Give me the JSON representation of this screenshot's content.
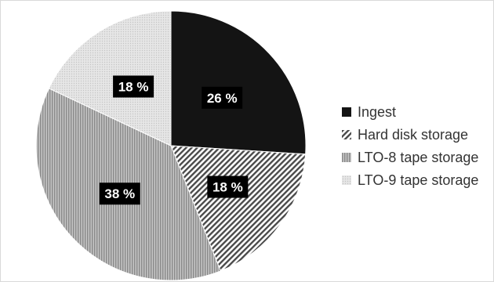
{
  "chart_data": {
    "type": "pie",
    "labels": [
      "Ingest",
      "Hard disk storage",
      "LTO-8 tape storage",
      "LTO-9 tape storage"
    ],
    "values": [
      26,
      18,
      38,
      18
    ],
    "value_labels": [
      "26 %",
      "18 %",
      "38 %",
      "18 %"
    ],
    "start_angle_deg": 0,
    "direction": "clockwise",
    "legend_position": "right",
    "fills": [
      "solid-black",
      "diagonal-hatch",
      "dense-vertical-lines",
      "light-dots"
    ],
    "colors": [
      "#141414",
      "#5a5a5a",
      "#9a9a9a",
      "#d8d8d8"
    ]
  }
}
